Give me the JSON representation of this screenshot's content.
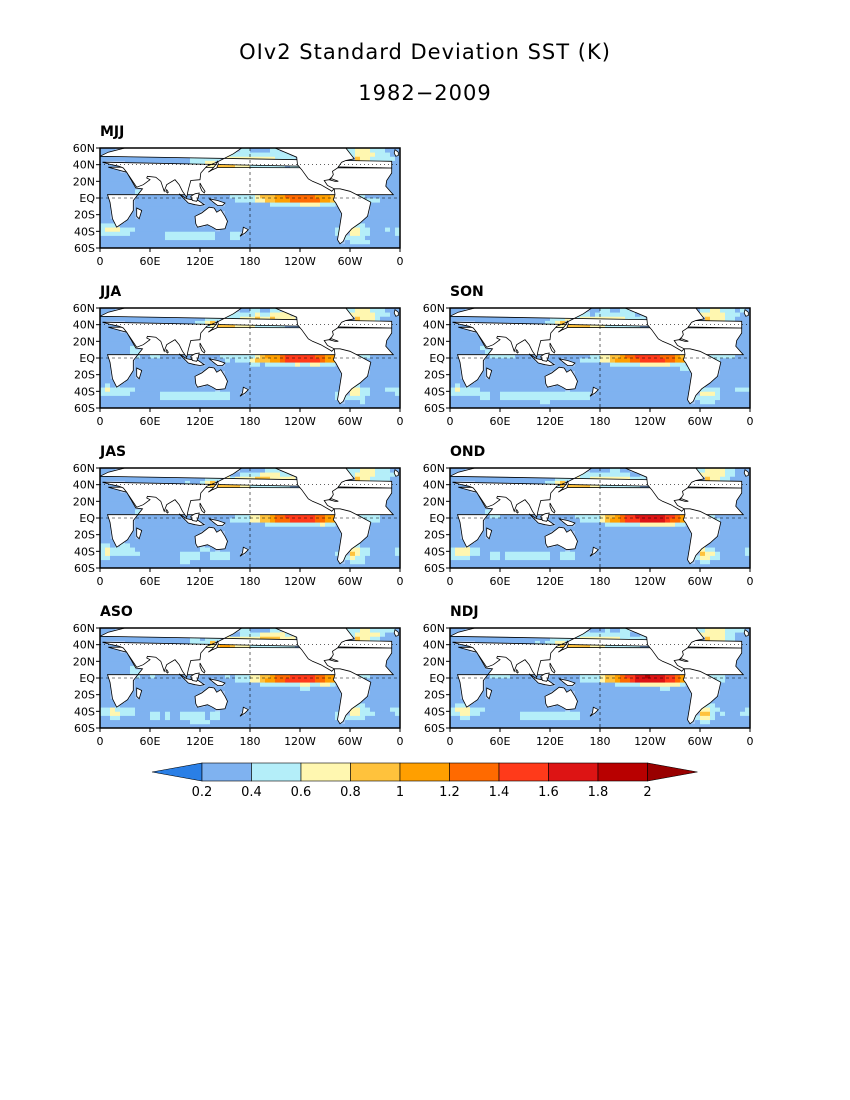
{
  "title": "OIv2 Standard Deviation SST (K)",
  "subtitle": "1982−2009",
  "axes": {
    "lat_ticks": [
      "60N",
      "40N",
      "20N",
      "EQ",
      "20S",
      "40S",
      "60S"
    ],
    "lon_ticks": [
      "0",
      "60E",
      "120E",
      "180",
      "120W",
      "60W",
      "0"
    ]
  },
  "colors": {
    "ocean_low": "#a9c9f5",
    "land": "#ffffff",
    "coast": "#000000"
  },
  "chart_data": [
    {
      "type": "heatmap",
      "title": "MJJ",
      "variable": "SST standard deviation",
      "units": "K",
      "lon_range": [
        0,
        360
      ],
      "lat_range": [
        -60,
        60
      ],
      "equatorial_max": 1.4
    },
    {
      "type": "heatmap",
      "title": "JJA",
      "variable": "SST standard deviation",
      "units": "K",
      "lon_range": [
        0,
        360
      ],
      "lat_range": [
        -60,
        60
      ],
      "equatorial_max": 1.6
    },
    {
      "type": "heatmap",
      "title": "SON",
      "variable": "SST standard deviation",
      "units": "K",
      "lon_range": [
        0,
        360
      ],
      "lat_range": [
        -60,
        60
      ],
      "equatorial_max": 1.6
    },
    {
      "type": "heatmap",
      "title": "JAS",
      "variable": "SST standard deviation",
      "units": "K",
      "lon_range": [
        0,
        360
      ],
      "lat_range": [
        -60,
        60
      ],
      "equatorial_max": 1.6
    },
    {
      "type": "heatmap",
      "title": "OND",
      "variable": "SST standard deviation",
      "units": "K",
      "lon_range": [
        0,
        360
      ],
      "lat_range": [
        -60,
        60
      ],
      "equatorial_max": 1.8
    },
    {
      "type": "heatmap",
      "title": "ASO",
      "variable": "SST standard deviation",
      "units": "K",
      "lon_range": [
        0,
        360
      ],
      "lat_range": [
        -60,
        60
      ],
      "equatorial_max": 1.6
    },
    {
      "type": "heatmap",
      "title": "NDJ",
      "variable": "SST standard deviation",
      "units": "K",
      "lon_range": [
        0,
        360
      ],
      "lat_range": [
        -60,
        60
      ],
      "equatorial_max": 1.8
    }
  ],
  "colorbar": {
    "labels": [
      "0.2",
      "0.4",
      "0.6",
      "0.8",
      "1",
      "1.2",
      "1.4",
      "1.6",
      "1.8",
      "2"
    ],
    "colors": [
      "#2a7fe6",
      "#7fb2f0",
      "#b4eef9",
      "#fff7b0",
      "#ffc23c",
      "#ff9f00",
      "#ff6a00",
      "#ff3a1a",
      "#dd1414",
      "#b80000",
      "#990000"
    ]
  }
}
